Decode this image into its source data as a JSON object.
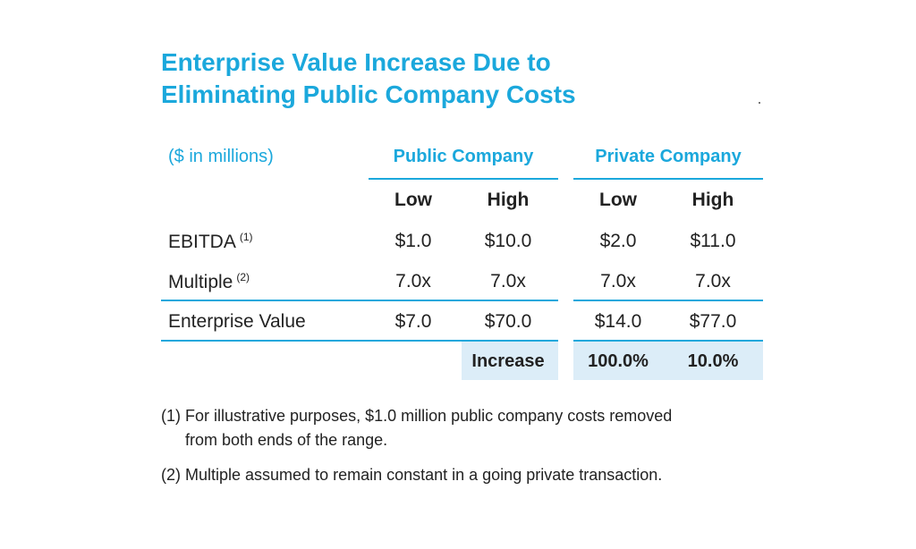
{
  "title": {
    "line1": "Enterprise Value Increase Due to",
    "line2": "Eliminating Public Company Costs"
  },
  "table": {
    "units": "($ in millions)",
    "groups": {
      "public": "Public Company",
      "private": "Private Company"
    },
    "columns": {
      "low": "Low",
      "high": "High"
    },
    "rows": [
      {
        "label": "EBITDA",
        "note": "(1)",
        "public_low": "$1.0",
        "public_high": "$10.0",
        "private_low": "$2.0",
        "private_high": "$11.0"
      },
      {
        "label": "Multiple",
        "note": "(2)",
        "public_low": "7.0x",
        "public_high": "7.0x",
        "private_low": "7.0x",
        "private_high": "7.0x"
      },
      {
        "label": "Enterprise Value",
        "note": "",
        "public_low": "$7.0",
        "public_high": "$70.0",
        "private_low": "$14.0",
        "private_high": "$77.0"
      }
    ],
    "increase": {
      "label": "Increase",
      "low": "100.0%",
      "high": "10.0%"
    }
  },
  "footnotes": [
    {
      "line1": "(1) For illustrative purposes, $1.0 million public company costs removed",
      "line2": "from both ends of the range."
    },
    {
      "line1": "(2) Multiple assumed to remain constant in a going private transaction."
    }
  ],
  "colors": {
    "accent": "#1ba8dc",
    "highlight": "#dcedf8",
    "text": "#222222"
  }
}
